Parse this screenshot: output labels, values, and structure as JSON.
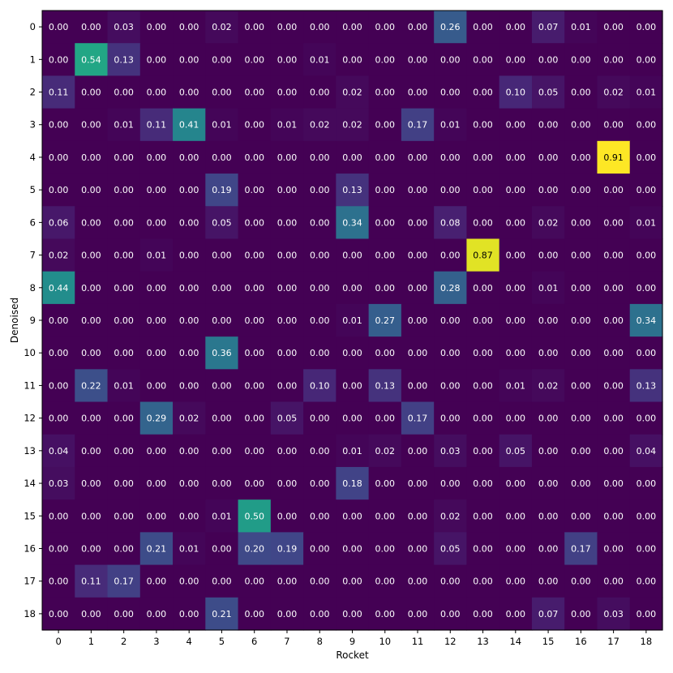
{
  "chart_data": {
    "type": "heatmap",
    "title": "",
    "xlabel": "Rocket",
    "ylabel": "Denoised",
    "x_categories": [
      "0",
      "1",
      "2",
      "3",
      "4",
      "5",
      "6",
      "7",
      "8",
      "9",
      "10",
      "11",
      "12",
      "13",
      "14",
      "15",
      "16",
      "17",
      "18"
    ],
    "y_categories": [
      "0",
      "1",
      "2",
      "3",
      "4",
      "5",
      "6",
      "7",
      "8",
      "9",
      "10",
      "11",
      "12",
      "13",
      "14",
      "15",
      "16",
      "17",
      "18"
    ],
    "colormap": "viridis",
    "value_range": [
      0,
      1
    ],
    "values": [
      [
        0.0,
        0.0,
        0.03,
        0.0,
        0.0,
        0.02,
        0.0,
        0.0,
        0.0,
        0.0,
        0.0,
        0.0,
        0.26,
        0.0,
        0.0,
        0.07,
        0.01,
        0.0,
        0.0
      ],
      [
        0.0,
        0.54,
        0.13,
        0.0,
        0.0,
        0.0,
        0.0,
        0.0,
        0.01,
        0.0,
        0.0,
        0.0,
        0.0,
        0.0,
        0.0,
        0.0,
        0.0,
        0.0,
        0.0
      ],
      [
        0.11,
        0.0,
        0.0,
        0.0,
        0.0,
        0.0,
        0.0,
        0.0,
        0.0,
        0.02,
        0.0,
        0.0,
        0.0,
        0.0,
        0.1,
        0.05,
        0.0,
        0.02,
        0.01
      ],
      [
        0.0,
        0.0,
        0.01,
        0.11,
        0.41,
        0.01,
        0.0,
        0.01,
        0.02,
        0.02,
        0.0,
        0.17,
        0.01,
        0.0,
        0.0,
        0.0,
        0.0,
        0.0,
        0.0
      ],
      [
        0.0,
        0.0,
        0.0,
        0.0,
        0.0,
        0.0,
        0.0,
        0.0,
        0.0,
        0.0,
        0.0,
        0.0,
        0.0,
        0.0,
        0.0,
        0.0,
        0.0,
        0.91,
        0.0
      ],
      [
        0.0,
        0.0,
        0.0,
        0.0,
        0.0,
        0.19,
        0.0,
        0.0,
        0.0,
        0.13,
        0.0,
        0.0,
        0.0,
        0.0,
        0.0,
        0.0,
        0.0,
        0.0,
        0.0
      ],
      [
        0.06,
        0.0,
        0.0,
        0.0,
        0.0,
        0.05,
        0.0,
        0.0,
        0.0,
        0.34,
        0.0,
        0.0,
        0.08,
        0.0,
        0.0,
        0.02,
        0.0,
        0.0,
        0.01
      ],
      [
        0.02,
        0.0,
        0.0,
        0.01,
        0.0,
        0.0,
        0.0,
        0.0,
        0.0,
        0.0,
        0.0,
        0.0,
        0.0,
        0.87,
        0.0,
        0.0,
        0.0,
        0.0,
        0.0
      ],
      [
        0.44,
        0.0,
        0.0,
        0.0,
        0.0,
        0.0,
        0.0,
        0.0,
        0.0,
        0.0,
        0.0,
        0.0,
        0.28,
        0.0,
        0.0,
        0.01,
        0.0,
        0.0,
        0.0
      ],
      [
        0.0,
        0.0,
        0.0,
        0.0,
        0.0,
        0.0,
        0.0,
        0.0,
        0.0,
        0.01,
        0.27,
        0.0,
        0.0,
        0.0,
        0.0,
        0.0,
        0.0,
        0.0,
        0.34
      ],
      [
        0.0,
        0.0,
        0.0,
        0.0,
        0.0,
        0.36,
        0.0,
        0.0,
        0.0,
        0.0,
        0.0,
        0.0,
        0.0,
        0.0,
        0.0,
        0.0,
        0.0,
        0.0,
        0.0
      ],
      [
        0.0,
        0.22,
        0.01,
        0.0,
        0.0,
        0.0,
        0.0,
        0.0,
        0.1,
        0.0,
        0.13,
        0.0,
        0.0,
        0.0,
        0.01,
        0.02,
        0.0,
        0.0,
        0.13
      ],
      [
        0.0,
        0.0,
        0.0,
        0.29,
        0.02,
        0.0,
        0.0,
        0.05,
        0.0,
        0.0,
        0.0,
        0.17,
        0.0,
        0.0,
        0.0,
        0.0,
        0.0,
        0.0,
        0.0
      ],
      [
        0.04,
        0.0,
        0.0,
        0.0,
        0.0,
        0.0,
        0.0,
        0.0,
        0.0,
        0.01,
        0.02,
        0.0,
        0.03,
        0.0,
        0.05,
        0.0,
        0.0,
        0.0,
        0.04
      ],
      [
        0.03,
        0.0,
        0.0,
        0.0,
        0.0,
        0.0,
        0.0,
        0.0,
        0.0,
        0.18,
        0.0,
        0.0,
        0.0,
        0.0,
        0.0,
        0.0,
        0.0,
        0.0,
        0.0
      ],
      [
        0.0,
        0.0,
        0.0,
        0.0,
        0.0,
        0.01,
        0.5,
        0.0,
        0.0,
        0.0,
        0.0,
        0.0,
        0.02,
        0.0,
        0.0,
        0.0,
        0.0,
        0.0,
        0.0
      ],
      [
        0.0,
        0.0,
        0.0,
        0.21,
        0.01,
        0.0,
        0.2,
        0.19,
        0.0,
        0.0,
        0.0,
        0.0,
        0.05,
        0.0,
        0.0,
        0.0,
        0.17,
        0.0,
        0.0
      ],
      [
        0.0,
        0.11,
        0.17,
        0.0,
        0.0,
        0.0,
        0.0,
        0.0,
        0.0,
        0.0,
        0.0,
        0.0,
        0.0,
        0.0,
        0.0,
        0.0,
        0.0,
        0.0,
        0.0
      ],
      [
        0.0,
        0.0,
        0.0,
        0.0,
        0.0,
        0.21,
        0.0,
        0.0,
        0.0,
        0.0,
        0.0,
        0.0,
        0.0,
        0.0,
        0.0,
        0.07,
        0.0,
        0.03,
        0.0
      ]
    ],
    "cell_label_format": "0.00",
    "grid": false,
    "legend": "none"
  }
}
